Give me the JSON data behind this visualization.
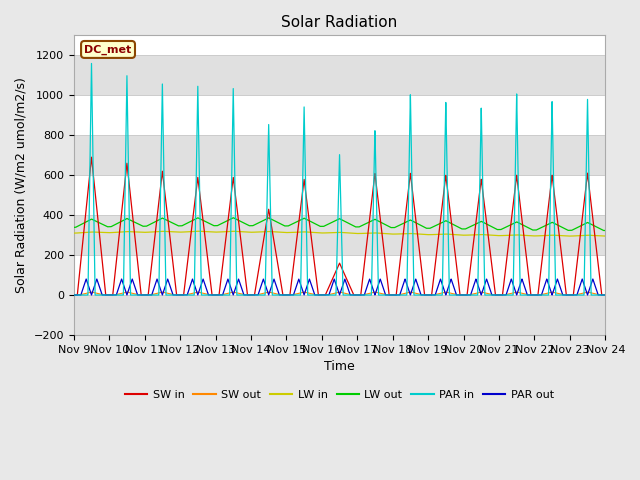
{
  "title": "Solar Radiation",
  "ylabel": "Solar Radiation (W/m2 umol/m2/s)",
  "xlabel": "Time",
  "days": 15,
  "ylim": [
    -200,
    1300
  ],
  "yticks": [
    -200,
    0,
    200,
    400,
    600,
    800,
    1000,
    1200
  ],
  "xtick_labels": [
    "Nov 9",
    "Nov 10",
    "Nov 11",
    "Nov 12",
    "Nov 13",
    "Nov 14",
    "Nov 15",
    "Nov 16",
    "Nov 17",
    "Nov 18",
    "Nov 19",
    "Nov 20",
    "Nov 21",
    "Nov 22",
    "Nov 23",
    "Nov 24"
  ],
  "fig_bg_color": "#e8e8e8",
  "plot_bg_color": "#ffffff",
  "band_color": "#e0e0e0",
  "legend_label": "DC_met",
  "series_colors": {
    "SW_in": "#dd0000",
    "SW_out": "#ff8800",
    "LW_in": "#cccc00",
    "LW_out": "#00cc00",
    "PAR_in": "#00cccc",
    "PAR_out": "#0000cc"
  },
  "series_labels": [
    "SW in",
    "SW out",
    "LW in",
    "LW out",
    "PAR in",
    "PAR out"
  ],
  "SW_in_peaks": [
    690,
    660,
    620,
    590,
    590,
    430,
    580,
    160,
    610,
    610,
    600,
    580,
    600,
    600,
    610
  ],
  "PAR_in_peaks": [
    1160,
    1100,
    1060,
    1050,
    1040,
    860,
    950,
    710,
    830,
    1010,
    970,
    940,
    1010,
    970,
    980
  ],
  "LW_in_base": 305,
  "LW_out_base": 335,
  "PAR_out_peak": 80,
  "grid_color": "#cccccc",
  "title_fontsize": 11,
  "label_fontsize": 9,
  "tick_fontsize": 8
}
